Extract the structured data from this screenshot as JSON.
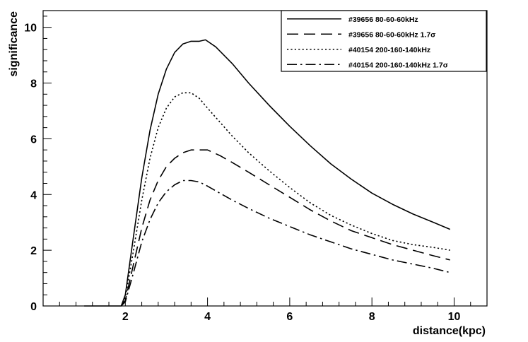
{
  "chart_data": {
    "type": "line",
    "title": "",
    "xlabel": "distance(kpc)",
    "ylabel": "significance",
    "xlim": [
      0,
      10.8
    ],
    "ylim": [
      0,
      10.6
    ],
    "xticks": [
      2,
      4,
      6,
      8,
      10
    ],
    "yticks": [
      0,
      2,
      4,
      6,
      8,
      10
    ],
    "grid": false,
    "legend_position": "top-right",
    "series": [
      {
        "name": "#39656 80-60-60kHz",
        "style": "solid",
        "x": [
          1.0,
          1.9,
          2.0,
          2.2,
          2.4,
          2.6,
          2.8,
          3.0,
          3.2,
          3.4,
          3.6,
          3.8,
          3.95,
          4.2,
          4.6,
          5.0,
          5.5,
          6.0,
          6.5,
          7.0,
          7.5,
          8.0,
          8.5,
          9.0,
          9.5,
          9.9
        ],
        "y": [
          0.0,
          0.0,
          0.4,
          2.5,
          4.6,
          6.3,
          7.6,
          8.5,
          9.1,
          9.4,
          9.5,
          9.5,
          9.55,
          9.3,
          8.7,
          8.0,
          7.2,
          6.45,
          5.75,
          5.1,
          4.55,
          4.05,
          3.65,
          3.3,
          3.0,
          2.75
        ]
      },
      {
        "name": "#39656 80-60-60kHz 1.7σ",
        "style": "dashed",
        "x": [
          1.9,
          2.0,
          2.2,
          2.4,
          2.6,
          2.8,
          3.0,
          3.2,
          3.4,
          3.6,
          3.8,
          4.0,
          4.3,
          4.6,
          5.0,
          5.5,
          6.0,
          6.5,
          7.0,
          7.5,
          8.0,
          8.5,
          9.0,
          9.5,
          9.9
        ],
        "y": [
          0.0,
          0.2,
          1.5,
          2.8,
          3.8,
          4.5,
          5.0,
          5.3,
          5.5,
          5.6,
          5.6,
          5.6,
          5.4,
          5.15,
          4.8,
          4.35,
          3.9,
          3.45,
          3.05,
          2.7,
          2.45,
          2.2,
          2.0,
          1.8,
          1.65
        ]
      },
      {
        "name": "#40154 200-160-140kHz",
        "style": "dotted",
        "x": [
          1.9,
          2.0,
          2.2,
          2.4,
          2.6,
          2.8,
          3.0,
          3.2,
          3.4,
          3.6,
          3.8,
          4.0,
          4.3,
          4.6,
          5.0,
          5.5,
          6.0,
          6.5,
          7.0,
          7.5,
          8.0,
          8.5,
          9.0,
          9.5,
          9.9
        ],
        "y": [
          0.0,
          0.3,
          2.0,
          3.8,
          5.3,
          6.4,
          7.1,
          7.5,
          7.65,
          7.65,
          7.45,
          7.1,
          6.6,
          6.1,
          5.5,
          4.85,
          4.25,
          3.7,
          3.25,
          2.9,
          2.6,
          2.35,
          2.2,
          2.1,
          2.0
        ]
      },
      {
        "name": "#40154 200-160-140kHz 1.7σ",
        "style": "dashdot",
        "x": [
          1.9,
          2.0,
          2.2,
          2.4,
          2.6,
          2.8,
          3.0,
          3.2,
          3.4,
          3.6,
          3.8,
          4.0,
          4.3,
          4.6,
          5.0,
          5.5,
          6.0,
          6.5,
          7.0,
          7.5,
          8.0,
          8.5,
          9.0,
          9.5,
          9.9
        ],
        "y": [
          0.0,
          0.15,
          1.2,
          2.3,
          3.1,
          3.7,
          4.1,
          4.35,
          4.5,
          4.5,
          4.45,
          4.3,
          4.05,
          3.8,
          3.5,
          3.15,
          2.85,
          2.55,
          2.3,
          2.05,
          1.85,
          1.65,
          1.5,
          1.35,
          1.2
        ]
      }
    ]
  }
}
